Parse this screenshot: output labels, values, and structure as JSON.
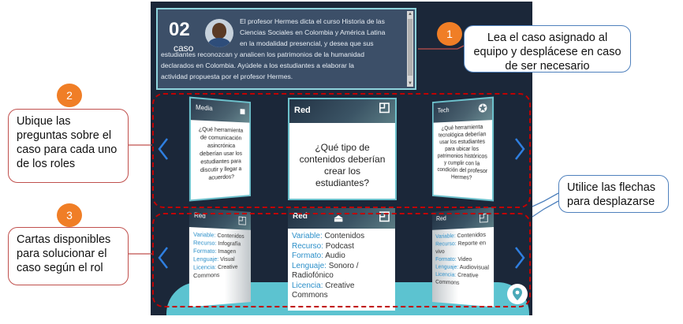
{
  "case": {
    "number": "02",
    "word": "caso",
    "text_lines": [
      "El profesor Hermes dicta el curso Historia de las",
      "Ciencias Sociales en Colombia y América Latina",
      "en la modalidad presencial, y desea que sus",
      "estudiantes reconozcan y analicen los patrimonios de la humanidad",
      "declarados en Colombia. Ayúdele a los estudiantes a elaborar la",
      "actividad propuesta por el profesor Hermes."
    ]
  },
  "question_cards": [
    {
      "category": "Media",
      "icon": "video-camera-icon",
      "text": "¿Qué herramienta de comunicación asincrónica deberían usar los estudiantes para discutir y llegar a acuerdos?"
    },
    {
      "category": "Red",
      "icon": "chat-bubble-icon",
      "text": "¿Qué tipo de contenidos deberían crear los estudiantes?"
    },
    {
      "category": "Tech",
      "icon": "gear-star-icon",
      "text": "¿Qué herramienta tecnológica deberían usar los estudiantes para ubicar los patrimonios históricos y cumplir con la condición del profesor Hermes?"
    }
  ],
  "resource_cards": [
    {
      "category": "Red",
      "fields": [
        {
          "key": "Variable:",
          "value": "Contenidos"
        },
        {
          "key": "Recurso:",
          "value": "Infografía"
        },
        {
          "key": "Formato:",
          "value": "Imagen"
        },
        {
          "key": "Lenguaje:",
          "value": "Visual"
        },
        {
          "key": "Licencia:",
          "value": "Creative Commons"
        }
      ]
    },
    {
      "category": "Red",
      "fields": [
        {
          "key": "Variable:",
          "value": "Contenidos"
        },
        {
          "key": "Recurso:",
          "value": "Podcast"
        },
        {
          "key": "Formato:",
          "value": "Audio"
        },
        {
          "key": "Lenguaje:",
          "value": "Sonoro / Radiofónico"
        },
        {
          "key": "Licencia:",
          "value": "Creative Commons"
        }
      ]
    },
    {
      "category": "Red",
      "fields": [
        {
          "key": "Variable:",
          "value": "Contenidos"
        },
        {
          "key": "Recurso:",
          "value": "Reporte en vivo"
        },
        {
          "key": "Formato:",
          "value": "Video"
        },
        {
          "key": "Lenguaje:",
          "value": "Audiovisual"
        },
        {
          "key": "Licencia:",
          "value": "Creative Commons"
        }
      ]
    }
  ],
  "callouts": [
    {
      "number": "1",
      "text": "Lea el caso asignado al equipo y desplácese en caso de ser necesario"
    },
    {
      "number": "2",
      "text": "Ubique las preguntas sobre el caso para cada uno de los roles"
    },
    {
      "number": "3",
      "text": "Cartas disponibles para solucionar el caso según el rol"
    },
    {
      "number": "",
      "text": "Utilice las flechas para desplazarse"
    }
  ],
  "colors": {
    "panel_bg": "#1b2739",
    "card_border": "#6dc1cc",
    "arrow": "#2f7fe0",
    "badge": "#f07e26",
    "dashed": "#c00000",
    "field_key": "#2b8fc9"
  }
}
